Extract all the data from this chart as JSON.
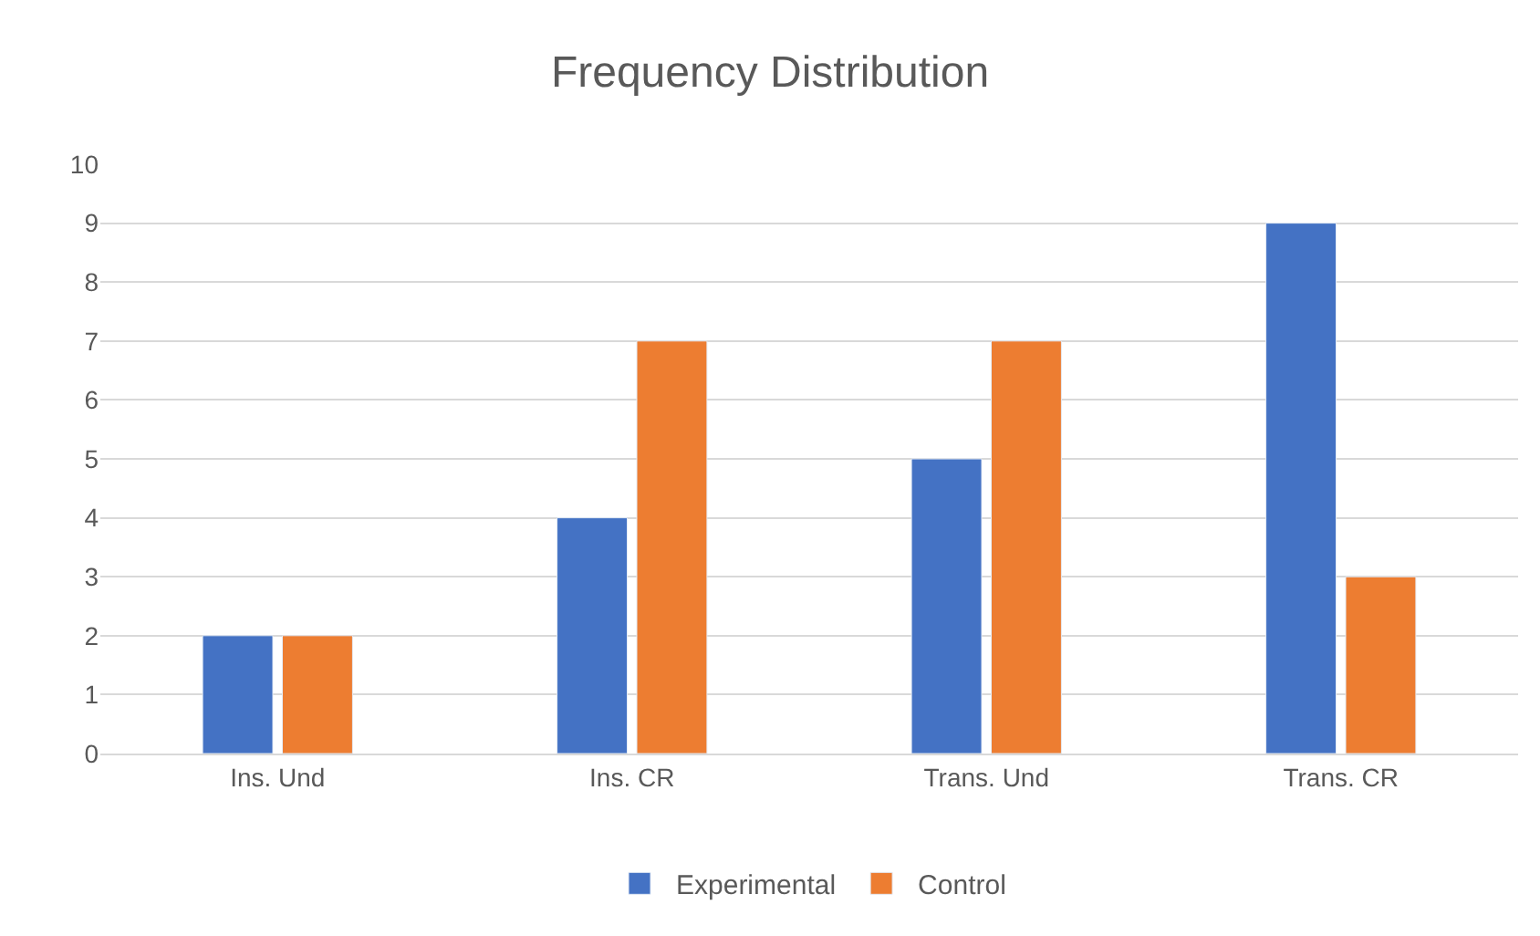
{
  "chart_data": {
    "type": "bar",
    "title": "Frequency Distribution",
    "categories": [
      "Ins. Und",
      "Ins. CR",
      "Trans. Und",
      "Trans. CR"
    ],
    "series": [
      {
        "name": "Experimental",
        "color": "#4472c4",
        "values": [
          2,
          4,
          5,
          9
        ]
      },
      {
        "name": "Control",
        "color": "#ed7d31",
        "values": [
          2,
          7,
          7,
          3
        ]
      }
    ],
    "ylim": [
      0,
      10
    ],
    "yticks": [
      0,
      1,
      2,
      3,
      4,
      5,
      6,
      7,
      8,
      9,
      10
    ],
    "grid": "y",
    "legend": "bottom"
  }
}
